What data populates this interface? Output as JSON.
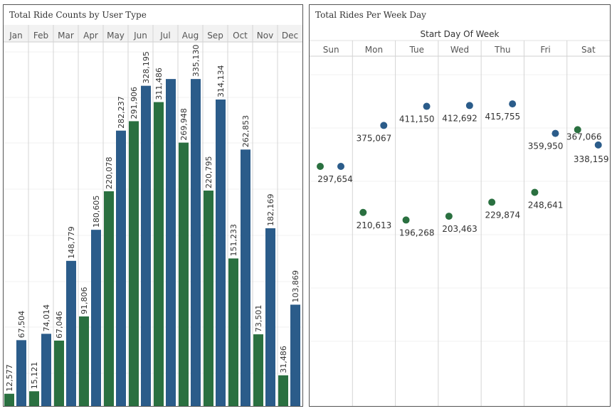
{
  "chart_data": [
    {
      "type": "bar",
      "title": "Total Ride Counts by User Type",
      "categories": [
        "Jan",
        "Feb",
        "Mar",
        "Apr",
        "May",
        "Jun",
        "Jul",
        "Aug",
        "Sep",
        "Oct",
        "Nov",
        "Dec"
      ],
      "series": [
        {
          "color": "#2a7040",
          "values": [
            12577,
            15121,
            67046,
            91806,
            220078,
            291906,
            311486,
            269948,
            220795,
            151233,
            73501,
            31486
          ],
          "labels": [
            "12,577",
            "15,121",
            "67,046",
            "91,806",
            "220,078",
            "291,906",
            "311,486",
            "269,948",
            "220,795",
            "151,233",
            "73,501",
            "31,486"
          ]
        },
        {
          "color": "#2b5c8a",
          "values": [
            67504,
            74014,
            148779,
            180605,
            282237,
            328195,
            335130,
            335130,
            314134,
            262853,
            182169,
            103869
          ],
          "labels": [
            "67,504",
            "74,014",
            "148,779",
            "180,605",
            "282,237",
            "328,195",
            "",
            "335,130",
            "314,134",
            "262,853",
            "182,169",
            "103,869"
          ]
        }
      ],
      "xlabel": "",
      "ylabel": "",
      "ylim": [
        0,
        360000
      ],
      "grid": true
    },
    {
      "type": "scatter",
      "title": "Total Rides Per Week Day",
      "xlabel": "Start Day Of Week",
      "categories": [
        "Sun",
        "Mon",
        "Tue",
        "Wed",
        "Thu",
        "Fri",
        "Sat"
      ],
      "series": [
        {
          "color": "#2a7040",
          "values": [
            297654,
            210613,
            196268,
            203463,
            229874,
            248641,
            367066
          ],
          "labels": [
            "",
            "210,613",
            "196,268",
            "203,463",
            "229,874",
            "248,641",
            "367,066"
          ]
        },
        {
          "color": "#2b5c8a",
          "values": [
            297654,
            375067,
            411150,
            412692,
            415755,
            359950,
            338159
          ],
          "labels": [
            "297,654",
            "375,067",
            "411,150",
            "412,692",
            "415,755",
            "359,950",
            "338,159"
          ]
        }
      ],
      "ylim": [
        120000,
        460000
      ],
      "grid": true
    }
  ]
}
